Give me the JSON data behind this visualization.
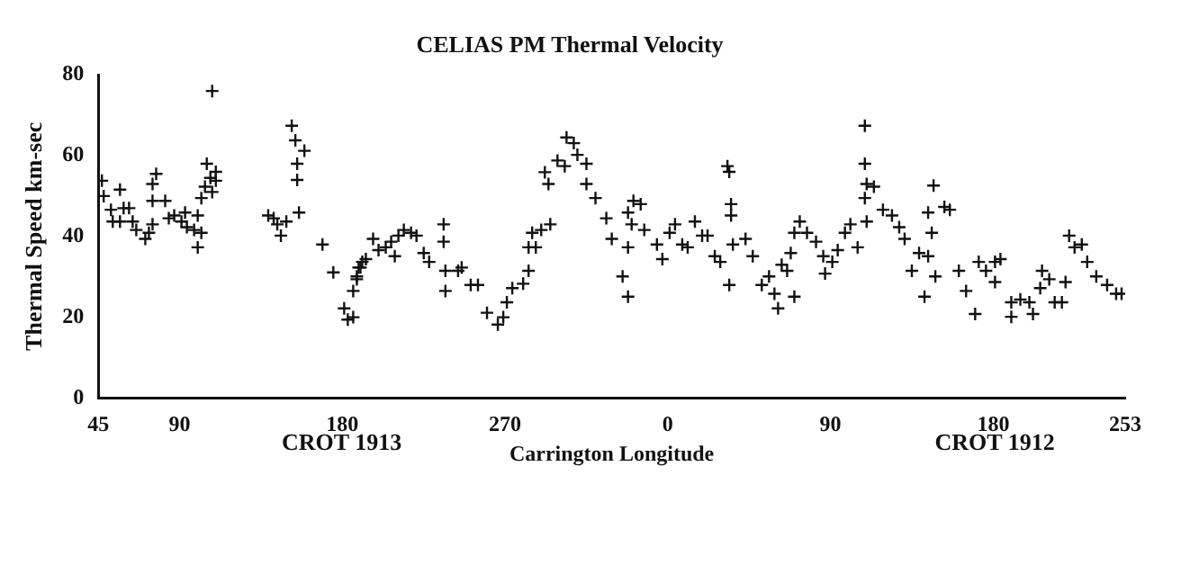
{
  "chart_data": {
    "type": "scatter",
    "title": "CELIAS PM Thermal Velocity",
    "xlabel": "Carrington Longitude",
    "ylabel": "Thermal Speed km-sec",
    "annotations": [
      "CROT 1913",
      "CROT 1912"
    ],
    "xlim": [
      45,
      613
    ],
    "xticks": [
      45,
      90,
      180,
      270
    ],
    "x2lim": [
      -315,
      253
    ],
    "x2ticks": [
      0,
      90,
      180,
      253
    ],
    "ylim": [
      0,
      80
    ],
    "yticks": [
      0,
      20,
      40,
      60,
      80
    ],
    "grid": false,
    "legend": false,
    "marker": "cross",
    "series": [
      {
        "color": "#111111",
        "x": [
          47,
          48,
          52,
          53,
          57,
          57,
          59,
          62,
          64,
          66,
          71,
          73,
          75,
          75,
          77,
          75,
          82,
          84,
          87,
          91,
          93,
          94,
          98,
          100,
          100,
          102,
          102,
          104,
          105,
          107,
          108,
          108,
          110,
          110,
          139,
          142,
          144,
          146,
          149,
          152,
          154,
          155,
          155,
          156,
          159,
          169,
          175,
          181,
          183,
          186,
          186,
          188,
          189,
          191,
          188,
          190,
          193,
          197,
          200,
          204,
          207,
          209,
          211,
          214,
          218,
          221,
          225,
          228,
          236,
          236,
          237,
          237,
          244,
          246,
          251,
          255,
          260,
          266,
          269,
          271,
          274,
          280,
          283,
          283,
          285,
          287,
          290,
          295,
          292,
          294,
          299,
          303,
          304,
          308,
          310,
          315,
          315,
          320,
          326,
          329,
          335,
          338,
          338,
          338,
          340,
          341,
          345,
          347,
          354,
          357
        ],
        "values": [
          53.8,
          50,
          46.6,
          43.7,
          43.7,
          51.6,
          47,
          47,
          43.7,
          41.6,
          39.4,
          40.9,
          43,
          53,
          55.5,
          48.8,
          48.8,
          44.5,
          45.2,
          43.7,
          45.9,
          42.3,
          41.6,
          45.2,
          37.3,
          40.9,
          49.5,
          52.3,
          58,
          54.5,
          76,
          51,
          56,
          53.8,
          45.2,
          44.5,
          43,
          40.2,
          43.7,
          67.4,
          63.8,
          58,
          54,
          45.9,
          61.2,
          38,
          31.1,
          22.2,
          19.4,
          20,
          26.5,
          29.4,
          32.3,
          33.7,
          30.1,
          32.3,
          34.4,
          39.4,
          36.6,
          37.3,
          38.7,
          35.1,
          40.2,
          41.6,
          40.9,
          40.2,
          35.9,
          33.7,
          43,
          38.7,
          31.5,
          26.5,
          31.5,
          32.3,
          28,
          28,
          21.1,
          18.2,
          20,
          23.7,
          27.2,
          28.3,
          31.5,
          37.3,
          40.9,
          37.3,
          41.6,
          43,
          55.9,
          53,
          58.8,
          57.4,
          64.5,
          63.1,
          60.2,
          58,
          53,
          49.5,
          44.5,
          39.4,
          30.1,
          25.1,
          37.3,
          45.9,
          43,
          48.8,
          48,
          41.6,
          38,
          34.4
        ]
      },
      {
        "color": "#111111",
        "axis": "x2",
        "x": [
          1,
          4,
          8,
          11,
          15,
          19,
          22,
          26,
          29,
          33,
          34,
          35,
          35,
          36,
          34,
          43,
          47,
          52,
          56,
          59,
          61,
          63,
          66,
          70,
          68,
          70,
          73,
          77,
          82,
          86,
          87,
          91,
          94,
          98,
          101,
          105,
          109,
          109,
          110,
          109,
          110,
          114,
          119,
          124,
          128,
          131,
          135,
          139,
          144,
          146,
          144,
          142,
          147,
          148,
          153,
          156,
          161,
          165,
          170,
          172,
          176,
          181,
          184,
          181,
          190,
          190,
          195,
          200,
          202,
          206,
          207,
          211,
          214,
          218,
          220,
          222,
          225,
          229,
          232,
          237,
          243,
          248,
          251
        ],
        "values": [
          40.9,
          43,
          38,
          37.3,
          43.7,
          40.2,
          40.2,
          35.1,
          33.7,
          57.4,
          56,
          48,
          45.2,
          38,
          28,
          39.4,
          35.1,
          28,
          30.1,
          25.8,
          22.2,
          33,
          31.5,
          25.1,
          35.9,
          40.9,
          43.7,
          40.9,
          38.7,
          35.1,
          30.8,
          33.7,
          36.6,
          40.9,
          43,
          37.3,
          67.4,
          58,
          53,
          49.5,
          43.7,
          52.3,
          46.6,
          45.2,
          42.3,
          39.4,
          31.5,
          35.9,
          45.9,
          40.9,
          35.1,
          25.1,
          52.6,
          30.1,
          47.3,
          46.6,
          31.5,
          26.5,
          20.8,
          33.7,
          31.5,
          33.7,
          34.4,
          28.7,
          20.1,
          23.7,
          24.4,
          23.7,
          20.8,
          27.2,
          31.5,
          29.4,
          23.7,
          23.7,
          28.7,
          40.2,
          37.3,
          38,
          33.7,
          30.1,
          28,
          25.8,
          25.8
        ]
      }
    ]
  }
}
